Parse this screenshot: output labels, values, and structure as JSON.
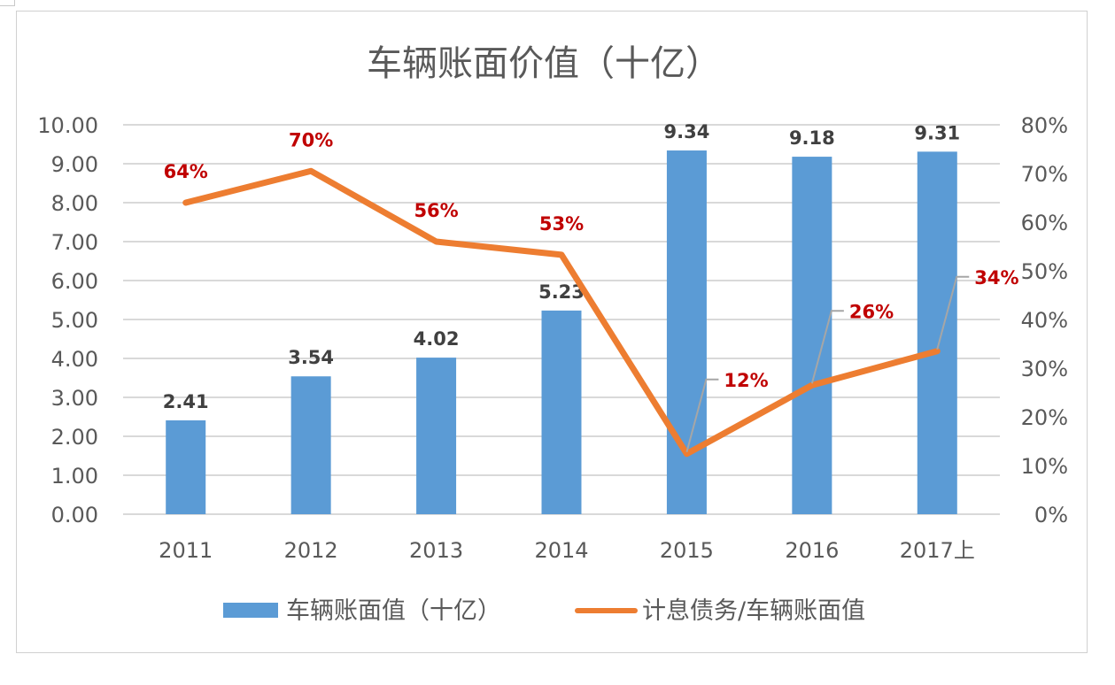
{
  "chart_data": {
    "type": "bar+line",
    "title": "车辆账面价值（十亿）",
    "categories": [
      "2011",
      "2012",
      "2013",
      "2014",
      "2015",
      "2016",
      "2017上"
    ],
    "series": [
      {
        "name": "车辆账面值（十亿）",
        "type": "bar",
        "axis": "left",
        "color": "#5b9bd5",
        "values": [
          2.41,
          3.54,
          4.02,
          5.23,
          9.34,
          9.18,
          9.31
        ],
        "labels": [
          "2.41",
          "3.54",
          "4.02",
          "5.23",
          "9.34",
          "9.18",
          "9.31"
        ]
      },
      {
        "name": "计息债务/车辆账面值",
        "type": "line",
        "axis": "right",
        "color": "#ed7d31",
        "values": [
          64,
          70.5,
          56,
          53.3,
          12.4,
          26.5,
          33.5
        ],
        "labels": [
          "64%",
          "70%",
          "56%",
          "53%",
          "12%",
          "26%",
          "34%"
        ]
      }
    ],
    "y_left": {
      "min": 0,
      "max": 10,
      "ticks": [
        "0.00",
        "1.00",
        "2.00",
        "3.00",
        "4.00",
        "5.00",
        "6.00",
        "7.00",
        "8.00",
        "9.00",
        "10.00"
      ]
    },
    "y_right": {
      "min": 0,
      "max": 80,
      "ticks": [
        "0%",
        "10%",
        "20%",
        "30%",
        "40%",
        "50%",
        "60%",
        "70%",
        "80%"
      ]
    },
    "grid": true,
    "legend": "bottom-center",
    "label_color": "#c00000"
  }
}
